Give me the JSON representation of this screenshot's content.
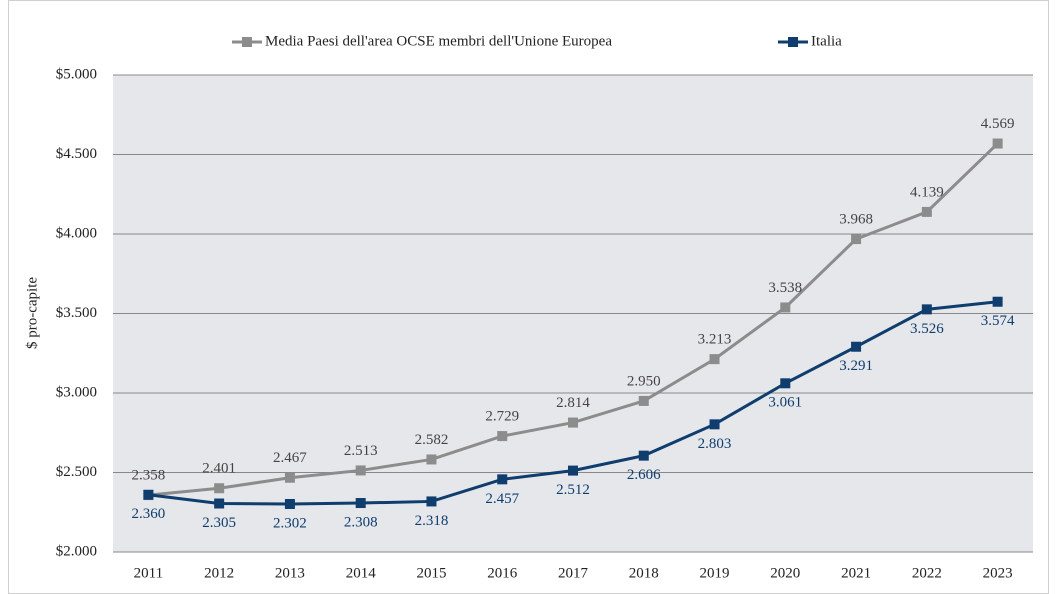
{
  "chart_data": {
    "type": "line",
    "y_label": "$ pro-capite",
    "categories": [
      "2011",
      "2012",
      "2013",
      "2014",
      "2015",
      "2016",
      "2017",
      "2018",
      "2019",
      "2020",
      "2021",
      "2022",
      "2023"
    ],
    "series": [
      {
        "name": "Media Paesi dell'area OCSE membri dell'Unione Europea",
        "color": "#8c8c8c",
        "values": [
          2358,
          2401,
          2467,
          2513,
          2582,
          2729,
          2814,
          2950,
          3213,
          3538,
          3968,
          4139,
          4569
        ],
        "value_labels": [
          "2.358",
          "2.401",
          "2.467",
          "2.513",
          "2.582",
          "2.729",
          "2.814",
          "2.950",
          "3.213",
          "3.538",
          "3.968",
          "4.139",
          "4.569"
        ]
      },
      {
        "name": "Italia",
        "color": "#0e3d6e",
        "values": [
          2360,
          2305,
          2302,
          2308,
          2318,
          2457,
          2512,
          2606,
          2803,
          3061,
          3291,
          3526,
          3574
        ],
        "value_labels": [
          "2.360",
          "2.305",
          "2.302",
          "2.308",
          "2.318",
          "2.457",
          "2.512",
          "2.606",
          "2.803",
          "3.061",
          "3.291",
          "3.526",
          "3.574"
        ]
      }
    ],
    "ylim": [
      2000,
      5000
    ],
    "yticks": [
      {
        "value": 2000,
        "label": "$2.000"
      },
      {
        "value": 2500,
        "label": "$2.500"
      },
      {
        "value": 3000,
        "label": "$3.000"
      },
      {
        "value": 3500,
        "label": "$3.500"
      },
      {
        "value": 4000,
        "label": "$4.000"
      },
      {
        "value": 4500,
        "label": "$4.500"
      },
      {
        "value": 5000,
        "label": "$5.000"
      }
    ],
    "grid": true,
    "legend": "top"
  }
}
